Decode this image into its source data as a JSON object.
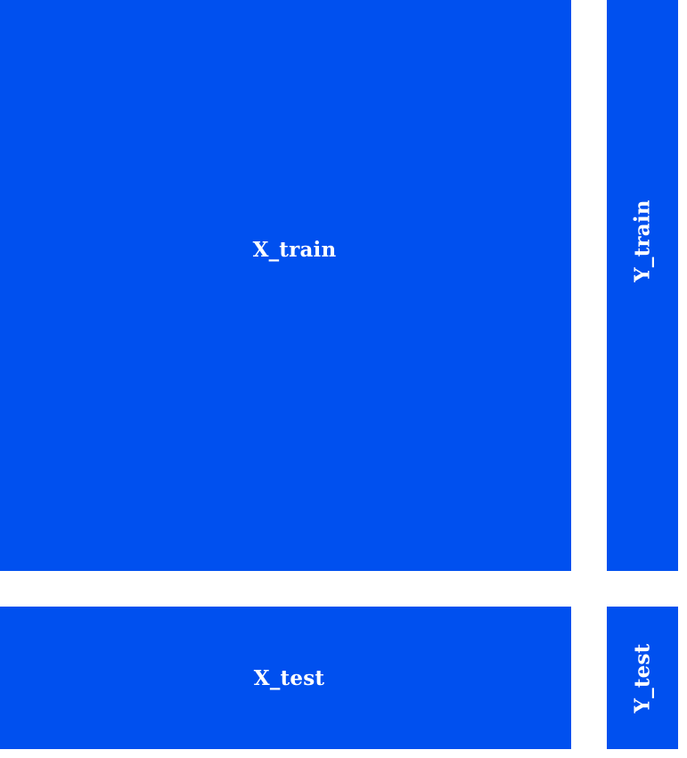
{
  "diagram": {
    "blocks": [
      {
        "id": "x_train",
        "label": "X_train"
      },
      {
        "id": "y_train",
        "label": "Y_train"
      },
      {
        "id": "x_test",
        "label": "X_test"
      },
      {
        "id": "y_test",
        "label": "Y_test"
      }
    ],
    "colors": {
      "block_fill": "#0050ef",
      "label_text": "#ffffff",
      "background": "#ffffff"
    }
  }
}
